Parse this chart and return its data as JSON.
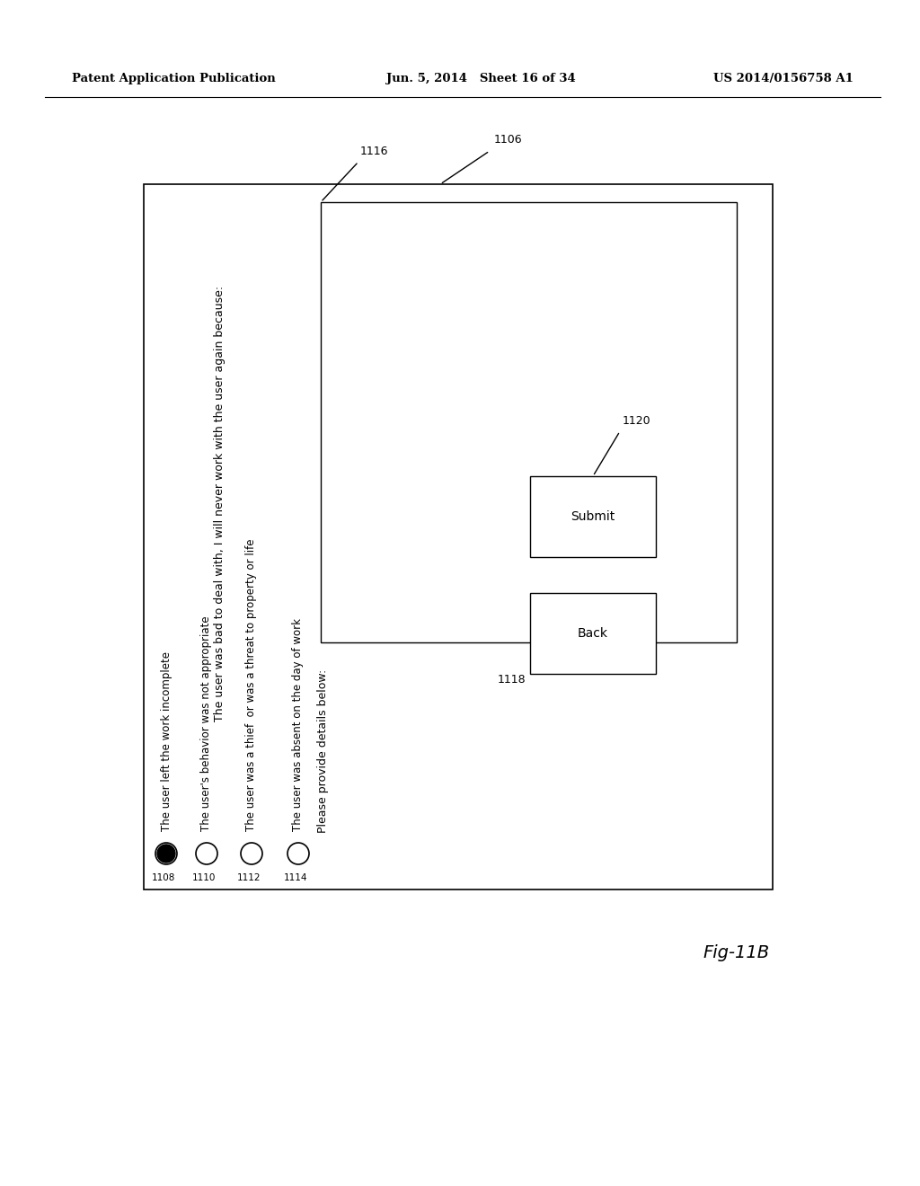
{
  "bg_color": "#ffffff",
  "header_left": "Patent Application Publication",
  "header_mid": "Jun. 5, 2014   Sheet 16 of 34",
  "header_right": "US 2014/0156758 A1",
  "fig_label": "Fig-11B",
  "label_1106": "1106",
  "label_1116": "1116",
  "label_1120": "1120",
  "label_1118": "1118",
  "label_1108": "1108",
  "label_1110": "1110",
  "label_1112": "1112",
  "label_1114": "1114",
  "title_text": "The user was bad to deal with, I will never work with the user again because:",
  "radio_texts": [
    "The user left the work incomplete",
    "The user's behavior was not appropriate",
    "The user was a thief  or was a threat to property or life",
    "The user was absent on the day of work"
  ],
  "details_text": "Please provide details below:",
  "submit_text": "Submit",
  "back_text": "Back"
}
